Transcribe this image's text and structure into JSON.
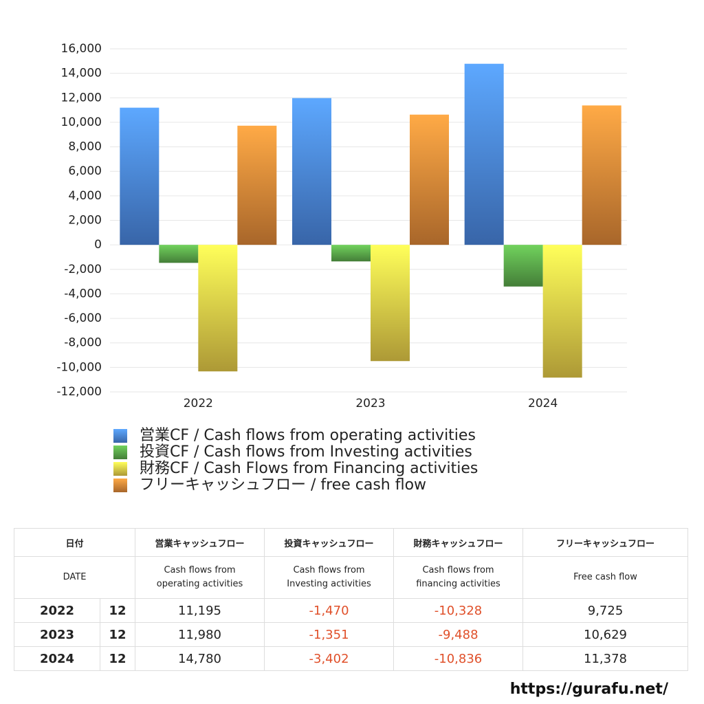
{
  "chart_data": {
    "type": "bar",
    "categories": [
      "2022",
      "2023",
      "2024"
    ],
    "series": [
      {
        "name": "営業CF / Cash flows from operating activities",
        "color": "#4a86e0",
        "values": [
          11195,
          11980,
          14780
        ]
      },
      {
        "name": "投資CF / Cash flows from Investing activities",
        "color": "#5aa84a",
        "values": [
          -1470,
          -1351,
          -3402
        ]
      },
      {
        "name": "財務CF / Cash Flows from Financing activities",
        "color": "#e6cc48",
        "values": [
          -10328,
          -9488,
          -10836
        ]
      },
      {
        "name": "フリーキャッシュフロー / free cash flow",
        "color": "#e08838",
        "values": [
          9725,
          10629,
          11378
        ]
      }
    ],
    "ylim": [
      -12000,
      16000
    ],
    "yticks": [
      {
        "value": -12000,
        "label": "-12,000"
      },
      {
        "value": -10000,
        "label": "-10,000"
      },
      {
        "value": -8000,
        "label": "-8,000"
      },
      {
        "value": -6000,
        "label": "-6,000"
      },
      {
        "value": -4000,
        "label": "-4,000"
      },
      {
        "value": -2000,
        "label": "-2,000"
      },
      0,
      {
        "value": 2000,
        "label": "2,000"
      },
      {
        "value": 4000,
        "label": "4,000"
      },
      {
        "value": 6000,
        "label": "6,000"
      },
      {
        "value": 8000,
        "label": "8,000"
      },
      {
        "value": 10000,
        "label": "10,000"
      },
      {
        "value": 12000,
        "label": "12,000"
      },
      {
        "value": 14000,
        "label": "14,000"
      },
      {
        "value": 16000,
        "label": "16,000"
      }
    ],
    "grid": true
  },
  "table": {
    "headers_ja": [
      "日付",
      "営業キャッシュフロー",
      "投資キャッシュフロー",
      "財務キャッシュフロー",
      "フリーキャッシュフロー"
    ],
    "headers_en": [
      [
        "DATE"
      ],
      [
        "Cash flows from",
        "operating activities"
      ],
      [
        "Cash flows from",
        "Investing activities"
      ],
      [
        "Cash flows from",
        "financing activities"
      ],
      [
        "Free cash flow"
      ]
    ],
    "rows": [
      [
        "2022",
        "12",
        "11,195",
        "-1,470",
        "-10,328",
        "9,725"
      ],
      [
        "2023",
        "12",
        "11,980",
        "-1,351",
        "-9,488",
        "10,629"
      ],
      [
        "2024",
        "12",
        "14,780",
        "-3,402",
        "-10,836",
        "11,378"
      ]
    ]
  },
  "footer": "https://gurafu.net/"
}
